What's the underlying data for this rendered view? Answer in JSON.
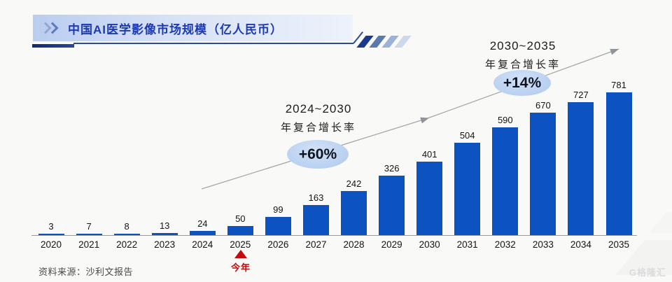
{
  "header": {
    "title": "中国AI医学影像市场规模（亿人民币）"
  },
  "chart_data": {
    "type": "bar",
    "title": "中国AI医学影像市场规模（亿人民币）",
    "unit": "亿人民币",
    "categories": [
      "2020",
      "2021",
      "2022",
      "2023",
      "2024",
      "2025",
      "2026",
      "2027",
      "2028",
      "2029",
      "2030",
      "2031",
      "2032",
      "2033",
      "2034",
      "2035"
    ],
    "values": [
      3,
      7,
      8,
      13,
      24,
      50,
      99,
      163,
      242,
      326,
      401,
      504,
      590,
      670,
      727,
      781
    ],
    "xlabel": "",
    "ylabel": "",
    "ylim": [
      0,
      800
    ],
    "grid": false,
    "legend": false,
    "bar_color": "#0d52c1",
    "annotations": [
      {
        "period": "2024~2030",
        "label": "年复合增长率",
        "badge": "+60%"
      },
      {
        "period": "2030~2035",
        "label": "年复合增长率",
        "badge": "+14%"
      }
    ],
    "current_year_marker": {
      "year": "2025",
      "label": "今年"
    }
  },
  "footer": {
    "source": "资料来源：沙利文报告",
    "watermark": "G格隆汇"
  },
  "colors": {
    "bar": "#0d52c1",
    "title_text": "#1d3ab3",
    "badge_bg": "#bdd3f2",
    "marker_red": "#c40a0a",
    "arrow": "#a3a3a3"
  }
}
